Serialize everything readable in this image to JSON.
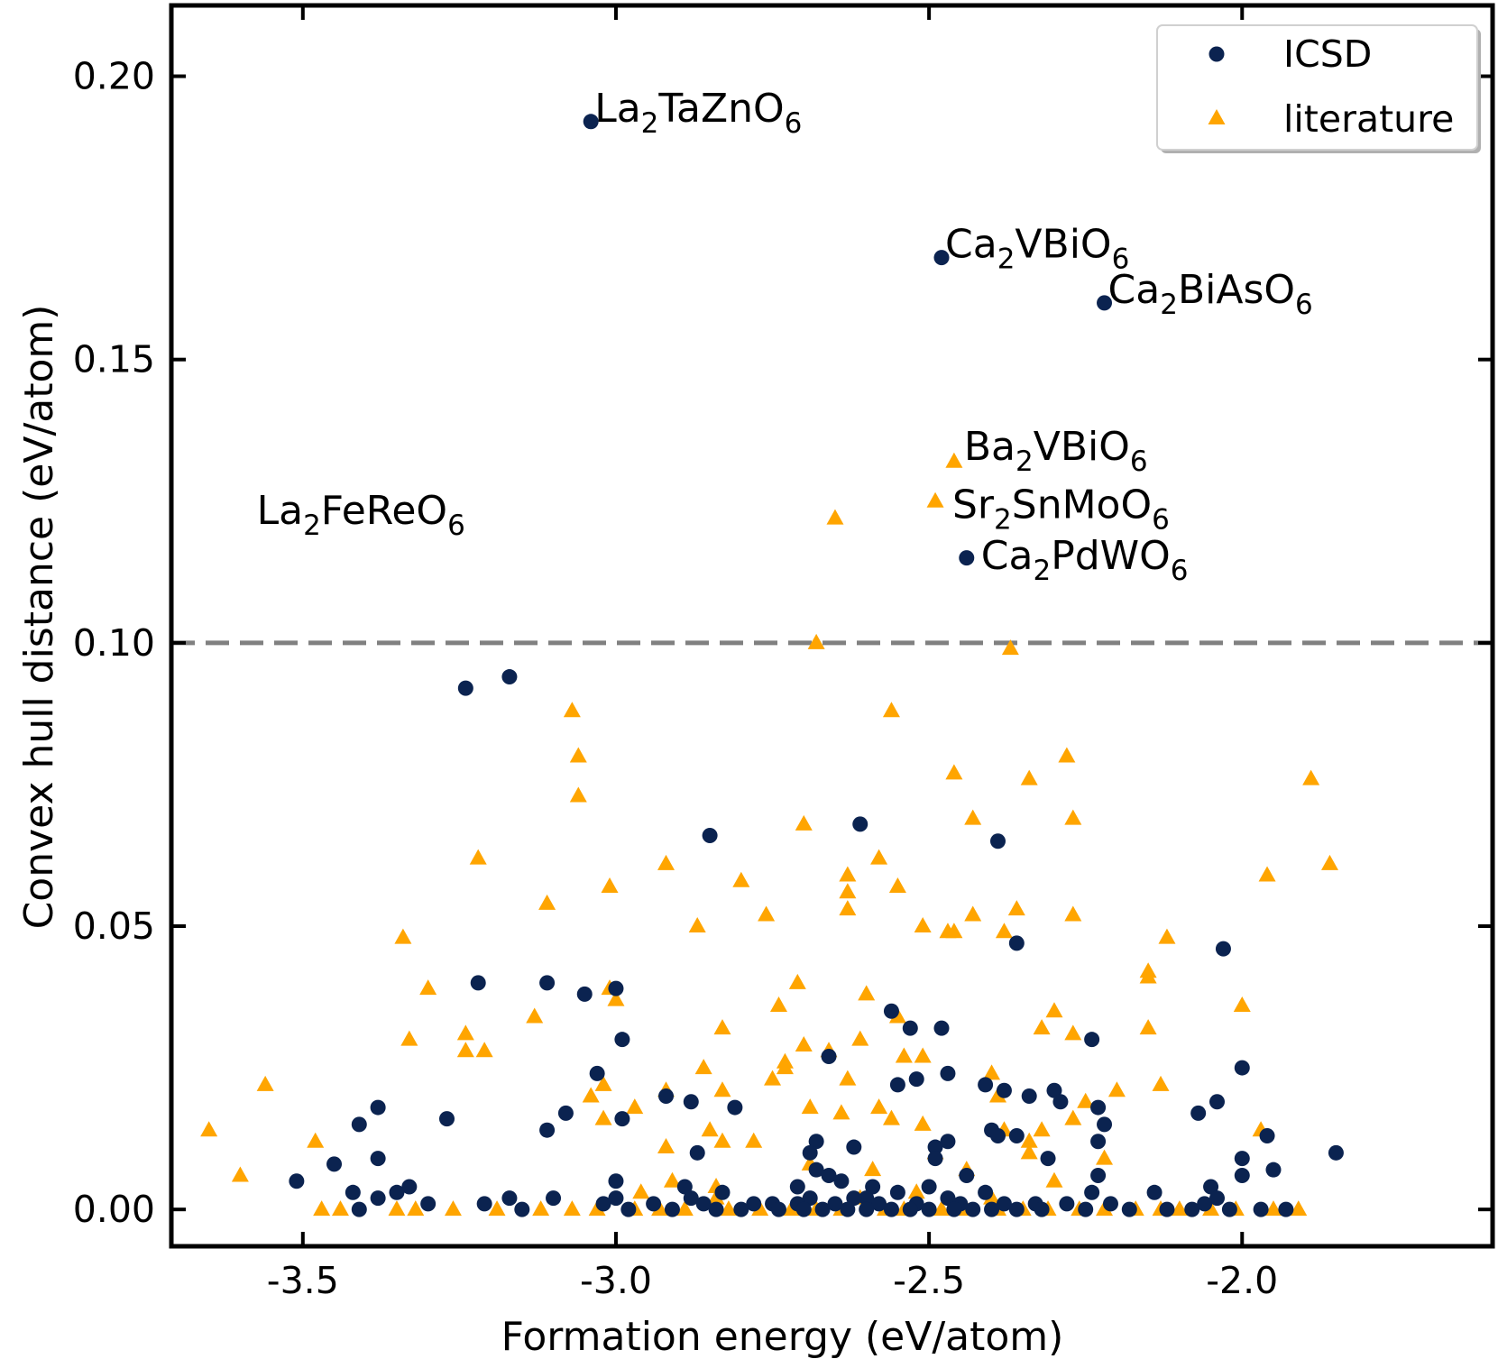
{
  "chart_data": {
    "type": "scatter",
    "title": "",
    "xlabel": "Formation energy (eV/atom)",
    "ylabel": "Convex hull distance (eV/atom)",
    "xlim": [
      -3.71,
      -1.6
    ],
    "ylim": [
      -0.0065,
      0.2125
    ],
    "xticks": [
      -3.5,
      -3.0,
      -2.5,
      -2.0
    ],
    "xtick_labels": [
      "-3.5",
      "-3.0",
      "-2.5",
      "-2.0"
    ],
    "yticks": [
      0.0,
      0.05,
      0.1,
      0.15,
      0.2
    ],
    "ytick_labels": [
      "0.00",
      "0.05",
      "0.10",
      "0.15",
      "0.20"
    ],
    "reference_line": {
      "y": 0.1,
      "style": "dashed",
      "color": "#808080"
    },
    "legend": {
      "position": "top-right"
    },
    "annotations": [
      {
        "base": "La",
        "sub1": "2",
        "mid": "TaZnO",
        "sub2": "6",
        "x": -3.04,
        "y": 0.192
      },
      {
        "base": "Ca",
        "sub1": "2",
        "mid": "VBiO",
        "sub2": "6",
        "x": -2.48,
        "y": 0.168
      },
      {
        "base": "Ca",
        "sub1": "2",
        "mid": "BiAsO",
        "sub2": "6",
        "x": -2.22,
        "y": 0.16
      },
      {
        "base": "Ba",
        "sub1": "2",
        "mid": "VBiO",
        "sub2": "6",
        "x": -2.45,
        "y": 0.132
      },
      {
        "base": "La",
        "sub1": "2",
        "mid": "FeReO",
        "sub2": "6",
        "x": -3.11,
        "y": 0.121
      },
      {
        "base": "Sr",
        "sub1": "2",
        "mid": "SnMoO",
        "sub2": "6",
        "x": -2.48,
        "y": 0.122
      },
      {
        "base": "Ca",
        "sub1": "2",
        "mid": "PdWO",
        "sub2": "6",
        "x": -2.44,
        "y": 0.113
      }
    ],
    "series": [
      {
        "name": "ICSD",
        "marker": "circle",
        "color": "#0b2350",
        "points": [
          [
            -3.04,
            0.192
          ],
          [
            -2.48,
            0.168
          ],
          [
            -2.22,
            0.16
          ],
          [
            -2.44,
            0.115
          ],
          [
            -3.17,
            0.094
          ],
          [
            -3.24,
            0.092
          ],
          [
            -2.85,
            0.066
          ],
          [
            -2.61,
            0.068
          ],
          [
            -2.39,
            0.065
          ],
          [
            -2.36,
            0.047
          ],
          [
            -2.03,
            0.046
          ],
          [
            -3.22,
            0.04
          ],
          [
            -3.11,
            0.04
          ],
          [
            -3.05,
            0.038
          ],
          [
            -3.0,
            0.039
          ],
          [
            -2.56,
            0.035
          ],
          [
            -2.53,
            0.032
          ],
          [
            -2.48,
            0.032
          ],
          [
            -2.99,
            0.03
          ],
          [
            -2.24,
            0.03
          ],
          [
            -2.66,
            0.027
          ],
          [
            -3.03,
            0.024
          ],
          [
            -2.47,
            0.024
          ],
          [
            -2.0,
            0.025
          ],
          [
            -2.52,
            0.023
          ],
          [
            -2.55,
            0.022
          ],
          [
            -2.41,
            0.022
          ],
          [
            -2.38,
            0.021
          ],
          [
            -2.34,
            0.02
          ],
          [
            -2.3,
            0.021
          ],
          [
            -2.29,
            0.019
          ],
          [
            -2.92,
            0.02
          ],
          [
            -2.88,
            0.019
          ],
          [
            -3.38,
            0.018
          ],
          [
            -2.81,
            0.018
          ],
          [
            -2.23,
            0.018
          ],
          [
            -2.07,
            0.017
          ],
          [
            -2.04,
            0.019
          ],
          [
            -3.08,
            0.017
          ],
          [
            -2.99,
            0.016
          ],
          [
            -3.27,
            0.016
          ],
          [
            -3.41,
            0.015
          ],
          [
            -3.11,
            0.014
          ],
          [
            -2.22,
            0.015
          ],
          [
            -2.4,
            0.014
          ],
          [
            -2.39,
            0.013
          ],
          [
            -2.36,
            0.013
          ],
          [
            -2.68,
            0.012
          ],
          [
            -2.62,
            0.011
          ],
          [
            -2.49,
            0.011
          ],
          [
            -2.47,
            0.012
          ],
          [
            -2.23,
            0.012
          ],
          [
            -1.96,
            0.013
          ],
          [
            -2.69,
            0.01
          ],
          [
            -2.87,
            0.01
          ],
          [
            -1.85,
            0.01
          ],
          [
            -2.0,
            0.009
          ],
          [
            -2.49,
            0.009
          ],
          [
            -2.31,
            0.009
          ],
          [
            -3.38,
            0.009
          ],
          [
            -3.45,
            0.008
          ],
          [
            -1.95,
            0.007
          ],
          [
            -2.68,
            0.007
          ],
          [
            -2.66,
            0.006
          ],
          [
            -2.44,
            0.006
          ],
          [
            -2.23,
            0.006
          ],
          [
            -2.0,
            0.006
          ],
          [
            -3.51,
            0.005
          ],
          [
            -3.0,
            0.005
          ],
          [
            -2.64,
            0.005
          ],
          [
            -2.59,
            0.004
          ],
          [
            -2.5,
            0.004
          ],
          [
            -2.89,
            0.004
          ],
          [
            -3.33,
            0.004
          ],
          [
            -2.05,
            0.004
          ],
          [
            -2.71,
            0.004
          ],
          [
            -3.42,
            0.003
          ],
          [
            -2.55,
            0.003
          ],
          [
            -2.41,
            0.003
          ],
          [
            -2.14,
            0.003
          ],
          [
            -2.04,
            0.002
          ],
          [
            -3.35,
            0.003
          ],
          [
            -3.38,
            0.002
          ],
          [
            -3.1,
            0.002
          ],
          [
            -2.6,
            0.002
          ],
          [
            -2.83,
            0.003
          ],
          [
            -2.69,
            0.002
          ],
          [
            -2.24,
            0.003
          ],
          [
            -3.17,
            0.002
          ],
          [
            -3.0,
            0.002
          ],
          [
            -2.88,
            0.002
          ],
          [
            -2.62,
            0.002
          ],
          [
            -2.47,
            0.002
          ],
          [
            -3.3,
            0.001
          ],
          [
            -3.21,
            0.001
          ],
          [
            -3.02,
            0.001
          ],
          [
            -2.94,
            0.001
          ],
          [
            -2.86,
            0.001
          ],
          [
            -2.78,
            0.001
          ],
          [
            -2.75,
            0.001
          ],
          [
            -2.71,
            0.001
          ],
          [
            -2.65,
            0.001
          ],
          [
            -2.58,
            0.001
          ],
          [
            -2.52,
            0.001
          ],
          [
            -2.45,
            0.001
          ],
          [
            -2.38,
            0.001
          ],
          [
            -2.33,
            0.001
          ],
          [
            -2.28,
            0.001
          ],
          [
            -2.21,
            0.001
          ],
          [
            -2.06,
            0.001
          ],
          [
            -3.41,
            0.0
          ],
          [
            -3.15,
            0.0
          ],
          [
            -2.98,
            0.0
          ],
          [
            -2.91,
            0.0
          ],
          [
            -2.84,
            0.0
          ],
          [
            -2.8,
            0.0
          ],
          [
            -2.74,
            0.0
          ],
          [
            -2.7,
            0.0
          ],
          [
            -2.67,
            0.0
          ],
          [
            -2.63,
            0.0
          ],
          [
            -2.6,
            0.0
          ],
          [
            -2.56,
            0.0
          ],
          [
            -2.53,
            0.0
          ],
          [
            -2.5,
            0.0
          ],
          [
            -2.46,
            0.0
          ],
          [
            -2.43,
            0.0
          ],
          [
            -2.4,
            0.0
          ],
          [
            -2.36,
            0.0
          ],
          [
            -2.32,
            0.0
          ],
          [
            -2.25,
            0.0
          ],
          [
            -2.18,
            0.0
          ],
          [
            -2.12,
            0.0
          ],
          [
            -2.08,
            0.0
          ],
          [
            -2.02,
            0.0
          ],
          [
            -1.97,
            0.0
          ],
          [
            -1.93,
            0.0
          ]
        ]
      },
      {
        "name": "literature",
        "marker": "triangle",
        "color": "#ffa500",
        "points": [
          [
            -2.65,
            0.122
          ],
          [
            -2.49,
            0.125
          ],
          [
            -2.46,
            0.132
          ],
          [
            -2.68,
            0.1
          ],
          [
            -2.37,
            0.099
          ],
          [
            -3.07,
            0.088
          ],
          [
            -2.56,
            0.088
          ],
          [
            -3.06,
            0.08
          ],
          [
            -2.28,
            0.08
          ],
          [
            -3.06,
            0.073
          ],
          [
            -2.46,
            0.077
          ],
          [
            -2.34,
            0.076
          ],
          [
            -1.89,
            0.076
          ],
          [
            -2.7,
            0.068
          ],
          [
            -2.43,
            0.069
          ],
          [
            -2.27,
            0.069
          ],
          [
            -3.22,
            0.062
          ],
          [
            -2.92,
            0.061
          ],
          [
            -2.58,
            0.062
          ],
          [
            -1.86,
            0.061
          ],
          [
            -2.63,
            0.059
          ],
          [
            -1.96,
            0.059
          ],
          [
            -2.8,
            0.058
          ],
          [
            -3.01,
            0.057
          ],
          [
            -2.55,
            0.057
          ],
          [
            -2.63,
            0.056
          ],
          [
            -3.11,
            0.054
          ],
          [
            -2.36,
            0.053
          ],
          [
            -2.63,
            0.053
          ],
          [
            -2.76,
            0.052
          ],
          [
            -2.43,
            0.052
          ],
          [
            -2.27,
            0.052
          ],
          [
            -2.87,
            0.05
          ],
          [
            -2.51,
            0.05
          ],
          [
            -2.47,
            0.049
          ],
          [
            -2.46,
            0.049
          ],
          [
            -2.38,
            0.049
          ],
          [
            -3.34,
            0.048
          ],
          [
            -2.12,
            0.048
          ],
          [
            -2.15,
            0.042
          ],
          [
            -2.15,
            0.041
          ],
          [
            -2.71,
            0.04
          ],
          [
            -3.3,
            0.039
          ],
          [
            -3.01,
            0.039
          ],
          [
            -2.6,
            0.038
          ],
          [
            -3.0,
            0.037
          ],
          [
            -2.74,
            0.036
          ],
          [
            -2.0,
            0.036
          ],
          [
            -3.13,
            0.034
          ],
          [
            -2.3,
            0.035
          ],
          [
            -2.55,
            0.034
          ],
          [
            -2.83,
            0.032
          ],
          [
            -2.15,
            0.032
          ],
          [
            -3.24,
            0.031
          ],
          [
            -3.33,
            0.03
          ],
          [
            -2.61,
            0.03
          ],
          [
            -2.27,
            0.031
          ],
          [
            -2.32,
            0.032
          ],
          [
            -2.7,
            0.029
          ],
          [
            -3.24,
            0.028
          ],
          [
            -3.21,
            0.028
          ],
          [
            -2.66,
            0.028
          ],
          [
            -2.54,
            0.027
          ],
          [
            -2.51,
            0.027
          ],
          [
            -2.73,
            0.026
          ],
          [
            -2.86,
            0.025
          ],
          [
            -2.73,
            0.025
          ],
          [
            -2.75,
            0.023
          ],
          [
            -2.4,
            0.024
          ],
          [
            -3.56,
            0.022
          ],
          [
            -2.63,
            0.023
          ],
          [
            -2.13,
            0.022
          ],
          [
            -3.02,
            0.022
          ],
          [
            -3.04,
            0.02
          ],
          [
            -2.92,
            0.021
          ],
          [
            -2.83,
            0.021
          ],
          [
            -2.2,
            0.021
          ],
          [
            -2.39,
            0.02
          ],
          [
            -2.25,
            0.019
          ],
          [
            -2.69,
            0.018
          ],
          [
            -2.97,
            0.018
          ],
          [
            -2.58,
            0.018
          ],
          [
            -2.64,
            0.017
          ],
          [
            -2.56,
            0.016
          ],
          [
            -3.02,
            0.016
          ],
          [
            -2.51,
            0.015
          ],
          [
            -2.27,
            0.016
          ],
          [
            -2.32,
            0.014
          ],
          [
            -3.65,
            0.014
          ],
          [
            -2.85,
            0.014
          ],
          [
            -2.38,
            0.014
          ],
          [
            -2.83,
            0.012
          ],
          [
            -2.78,
            0.012
          ],
          [
            -3.48,
            0.012
          ],
          [
            -1.97,
            0.014
          ],
          [
            -2.92,
            0.011
          ],
          [
            -2.34,
            0.012
          ],
          [
            -2.49,
            0.01
          ],
          [
            -2.34,
            0.01
          ],
          [
            -2.22,
            0.009
          ],
          [
            -2.69,
            0.008
          ],
          [
            -2.59,
            0.007
          ],
          [
            -2.44,
            0.007
          ],
          [
            -3.6,
            0.006
          ],
          [
            -2.91,
            0.005
          ],
          [
            -2.3,
            0.005
          ],
          [
            -2.84,
            0.004
          ],
          [
            -2.52,
            0.003
          ],
          [
            -2.96,
            0.003
          ],
          [
            -2.84,
            0.002
          ],
          [
            -2.4,
            0.002
          ],
          [
            -2.61,
            0.002
          ],
          [
            -2.7,
            0.001
          ],
          [
            -3.47,
            0.0
          ],
          [
            -3.44,
            0.0
          ],
          [
            -3.35,
            0.0
          ],
          [
            -3.32,
            0.0
          ],
          [
            -3.26,
            0.0
          ],
          [
            -3.19,
            0.0
          ],
          [
            -3.12,
            0.0
          ],
          [
            -3.07,
            0.0
          ],
          [
            -3.03,
            0.0
          ],
          [
            -2.97,
            0.0
          ],
          [
            -2.93,
            0.0
          ],
          [
            -2.89,
            0.0
          ],
          [
            -2.82,
            0.0
          ],
          [
            -2.77,
            0.0
          ],
          [
            -2.72,
            0.0
          ],
          [
            -2.68,
            0.0
          ],
          [
            -2.64,
            0.0
          ],
          [
            -2.57,
            0.0
          ],
          [
            -2.54,
            0.0
          ],
          [
            -2.48,
            0.0
          ],
          [
            -2.44,
            0.0
          ],
          [
            -2.39,
            0.0
          ],
          [
            -2.35,
            0.0
          ],
          [
            -2.31,
            0.0
          ],
          [
            -2.26,
            0.0
          ],
          [
            -2.22,
            0.0
          ],
          [
            -2.17,
            0.0
          ],
          [
            -2.13,
            0.0
          ],
          [
            -2.1,
            0.0
          ],
          [
            -2.05,
            0.0
          ],
          [
            -2.01,
            0.0
          ],
          [
            -1.95,
            0.0
          ],
          [
            -1.91,
            0.0
          ]
        ]
      }
    ]
  }
}
